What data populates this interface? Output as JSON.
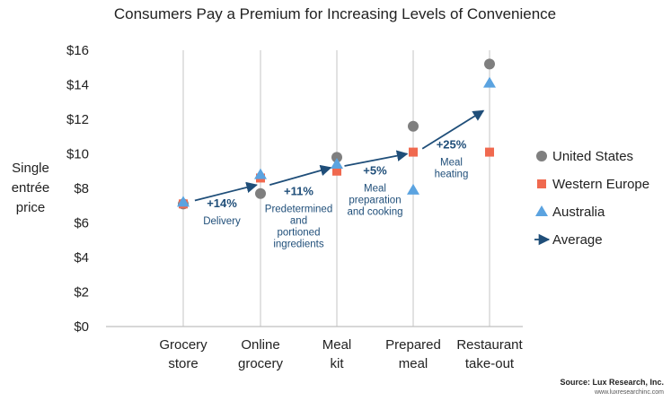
{
  "chart_data": {
    "type": "scatter",
    "title": "Consumers Pay a Premium for Increasing Levels of Convenience",
    "ylabel": [
      "Single",
      "entrée",
      "price"
    ],
    "ylim": [
      0,
      16
    ],
    "yticks": [
      "$0",
      "$2",
      "$4",
      "$6",
      "$8",
      "$10",
      "$12",
      "$14",
      "$16"
    ],
    "categories": [
      [
        "Grocery",
        "store"
      ],
      [
        "Online",
        "grocery"
      ],
      [
        "Meal",
        "kit"
      ],
      [
        "Prepared",
        "meal"
      ],
      [
        "Restaurant",
        "take-out"
      ]
    ],
    "grid": "vertical",
    "legend_position": "right",
    "series": [
      {
        "name": "United States",
        "marker": "circle",
        "color": "#7f7f7f",
        "values": [
          7.1,
          7.7,
          9.8,
          11.6,
          15.2
        ]
      },
      {
        "name": "Western Europe",
        "marker": "square",
        "color": "#f0694f",
        "values": [
          7.1,
          8.6,
          9.0,
          10.1,
          10.1
        ]
      },
      {
        "name": "Australia",
        "marker": "triangle",
        "color": "#5ba3e0",
        "values": [
          7.2,
          8.8,
          9.4,
          7.9,
          14.1
        ]
      }
    ],
    "average": {
      "name": "Average",
      "color": "#1f4e79",
      "segments": [
        {
          "from": [
            0.15,
            7.3
          ],
          "to": [
            0.95,
            8.2
          ]
        },
        {
          "from": [
            1.12,
            8.2
          ],
          "to": [
            1.92,
            9.2
          ]
        },
        {
          "from": [
            2.1,
            9.3
          ],
          "to": [
            2.92,
            10.0
          ]
        },
        {
          "from": [
            3.12,
            10.3
          ],
          "to": [
            3.92,
            12.5
          ]
        }
      ]
    },
    "annotations": [
      {
        "pct": "+14%",
        "text": [
          "Delivery"
        ],
        "at": [
          0.5,
          6.9
        ]
      },
      {
        "pct": "+11%",
        "text": [
          "Predetermined",
          "and",
          "portioned",
          "ingredients"
        ],
        "at": [
          1.5,
          7.6
        ]
      },
      {
        "pct": "+5%",
        "text": [
          "Meal",
          "preparation",
          "and cooking"
        ],
        "at": [
          2.5,
          8.8
        ]
      },
      {
        "pct": "+25%",
        "text": [
          "Meal",
          "heating"
        ],
        "at": [
          3.5,
          10.3
        ]
      }
    ],
    "source": {
      "line1": "Source: Lux Research, Inc.",
      "line2": "www.luxresearchinc.com"
    }
  }
}
